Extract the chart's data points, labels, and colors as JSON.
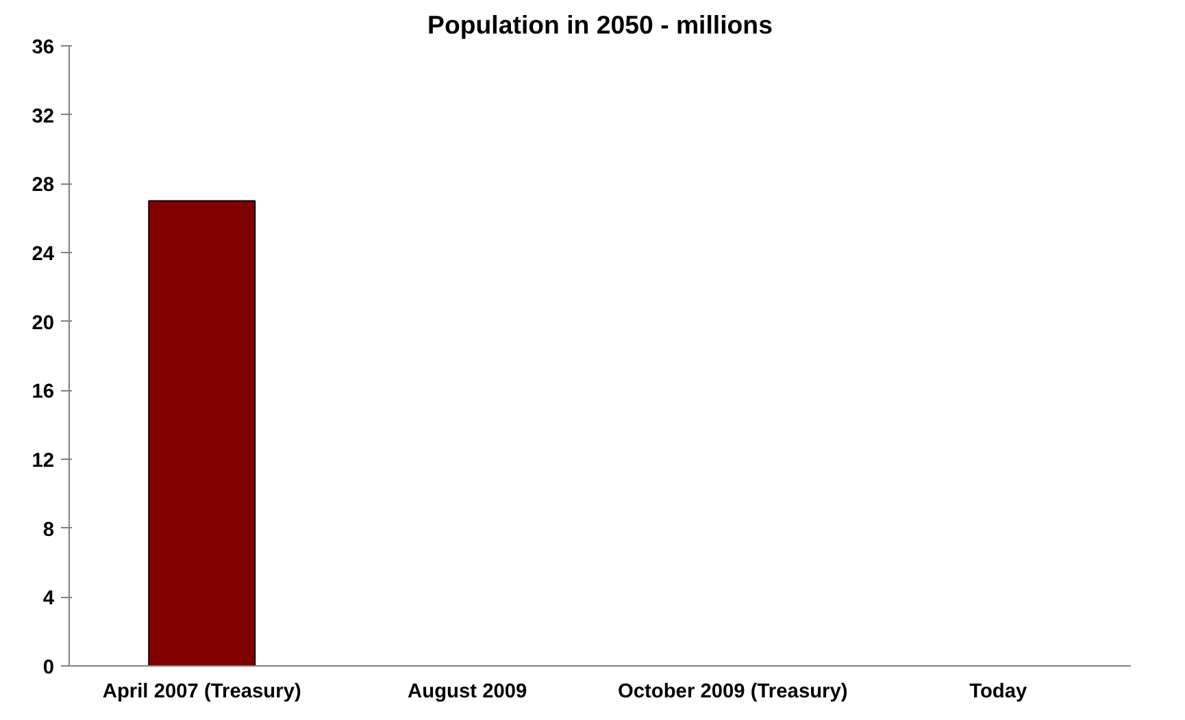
{
  "chart_data": {
    "type": "bar",
    "title": "Population in 2050 - millions",
    "categories": [
      "April 2007 (Treasury)",
      "August 2009",
      "October 2009 (Treasury)",
      "Today"
    ],
    "values": [
      27,
      null,
      null,
      null
    ],
    "color": "#800000",
    "ylim": [
      0,
      36
    ],
    "yticks": [
      0,
      4,
      8,
      12,
      16,
      20,
      24,
      28,
      32,
      36
    ],
    "grid": false
  }
}
